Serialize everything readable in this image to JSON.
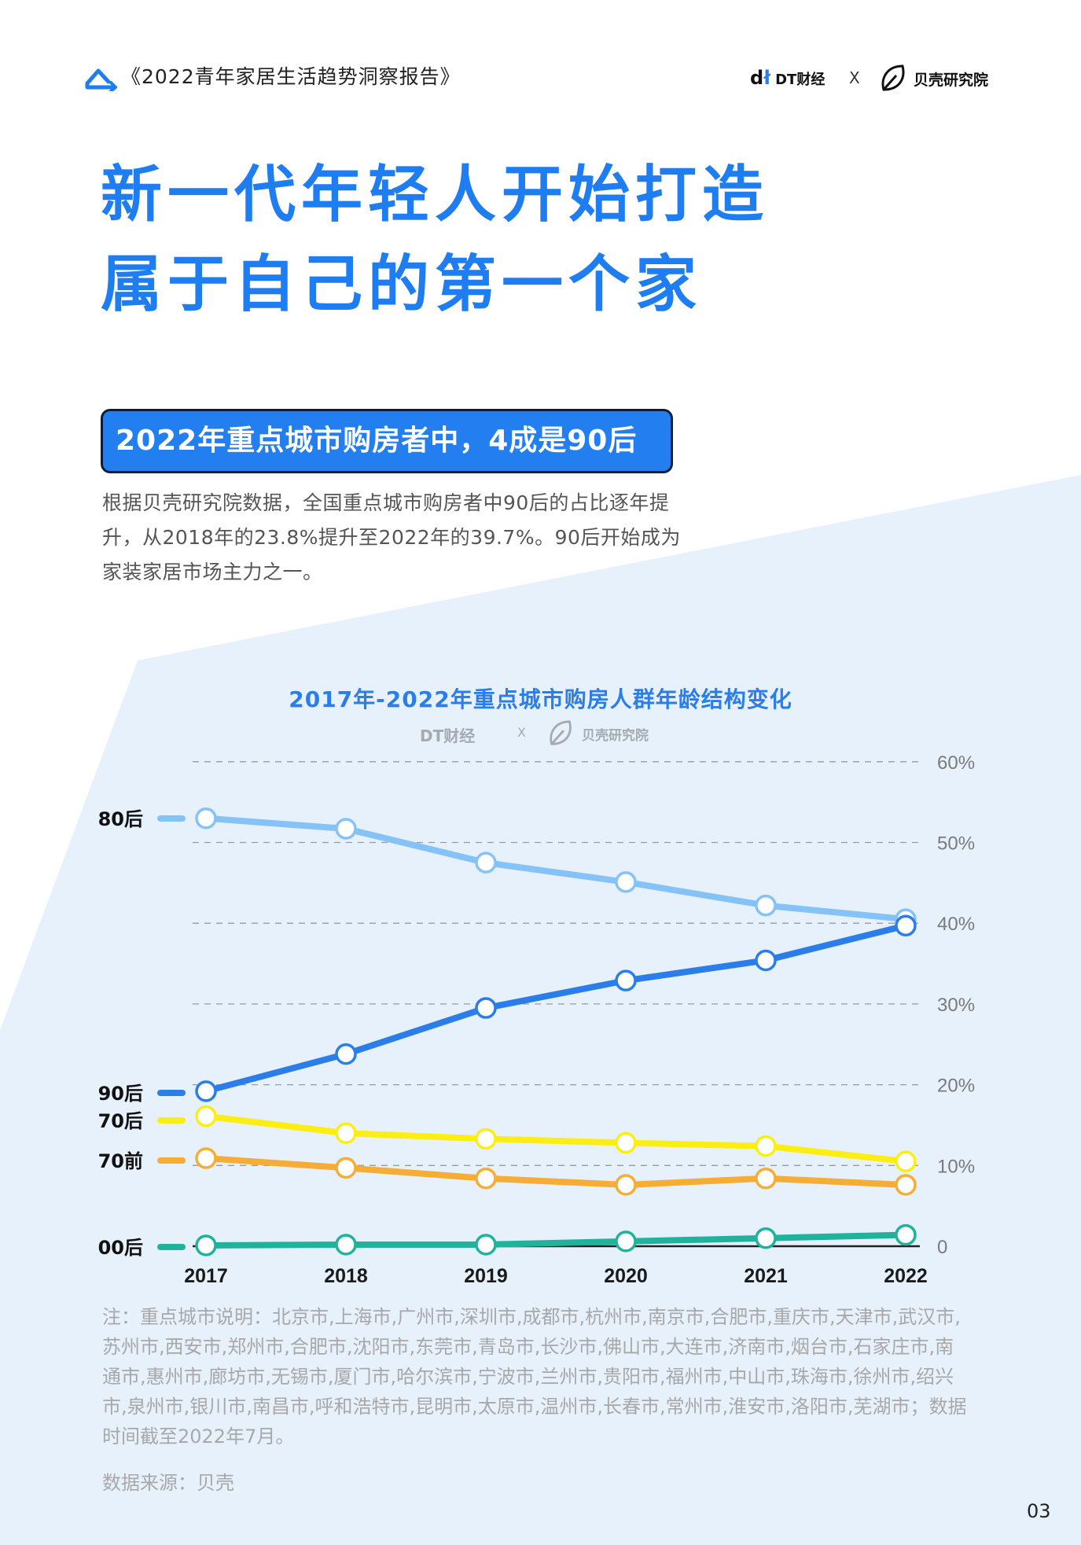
{
  "header": {
    "report_title": "《2022青年家居生活趋势洞察报告》",
    "dt_logo_text": "DT财经",
    "separator": "X",
    "beike_logo_text": "贝壳研究院"
  },
  "headline": {
    "line1": "新一代年轻人开始打造",
    "line2": "属于自己的第一个家"
  },
  "section": {
    "title": "2022年重点城市购房者中，4成是90后",
    "body": "根据贝壳研究院数据，全国重点城市购房者中90后的占比逐年提升，从2018年的23.8%提升至2022年的39.7%。90后开始成为家装家居市场主力之一。"
  },
  "chart_data": {
    "type": "line",
    "title": "2017年-2022年重点城市购房人群年龄结构变化",
    "watermark": {
      "dt": "DT财经",
      "separator": "X",
      "beike": "贝壳研究院"
    },
    "x": [
      "2017",
      "2018",
      "2019",
      "2020",
      "2021",
      "2022"
    ],
    "y_ticks": [
      "0",
      "10%",
      "20%",
      "30%",
      "40%",
      "50%",
      "60%"
    ],
    "ylim": [
      0,
      60
    ],
    "grid": true,
    "legend_placement": "left",
    "series": [
      {
        "name": "80后",
        "color": "#85c2f7",
        "values": [
          53.0,
          51.7,
          47.5,
          45.1,
          42.2,
          40.5
        ]
      },
      {
        "name": "90后",
        "color": "#2b7de9",
        "values": [
          19.2,
          23.8,
          29.5,
          32.9,
          35.4,
          39.7
        ]
      },
      {
        "name": "70后",
        "color": "#fcee13",
        "values": [
          16.1,
          14.0,
          13.3,
          12.8,
          12.4,
          10.5
        ]
      },
      {
        "name": "70前",
        "color": "#f6ad35",
        "values": [
          10.9,
          9.7,
          8.4,
          7.6,
          8.4,
          7.6
        ]
      },
      {
        "name": "00后",
        "color": "#1fb39b",
        "values": [
          0.1,
          0.2,
          0.2,
          0.6,
          1.0,
          1.4
        ]
      }
    ]
  },
  "notes": {
    "note": "注：重点城市说明：北京市,上海市,广州市,深圳市,成都市,杭州市,南京市,合肥市,重庆市,天津市,武汉市,苏州市,西安市,郑州市,合肥市,沈阳市,东莞市,青岛市,长沙市,佛山市,大连市,济南市,烟台市,石家庄市,南通市,惠州市,廊坊市,无锡市,厦门市,哈尔滨市,宁波市,兰州市,贵阳市,福州市,中山市,珠海市,徐州市,绍兴市,泉州市,银川市,南昌市,呼和浩特市,昆明市,太原市,温州市,长春市,常州市,淮安市,洛阳市,芜湖市；数据时间截至2022年7月。",
    "source": "数据来源：贝壳"
  },
  "page_number": "03"
}
